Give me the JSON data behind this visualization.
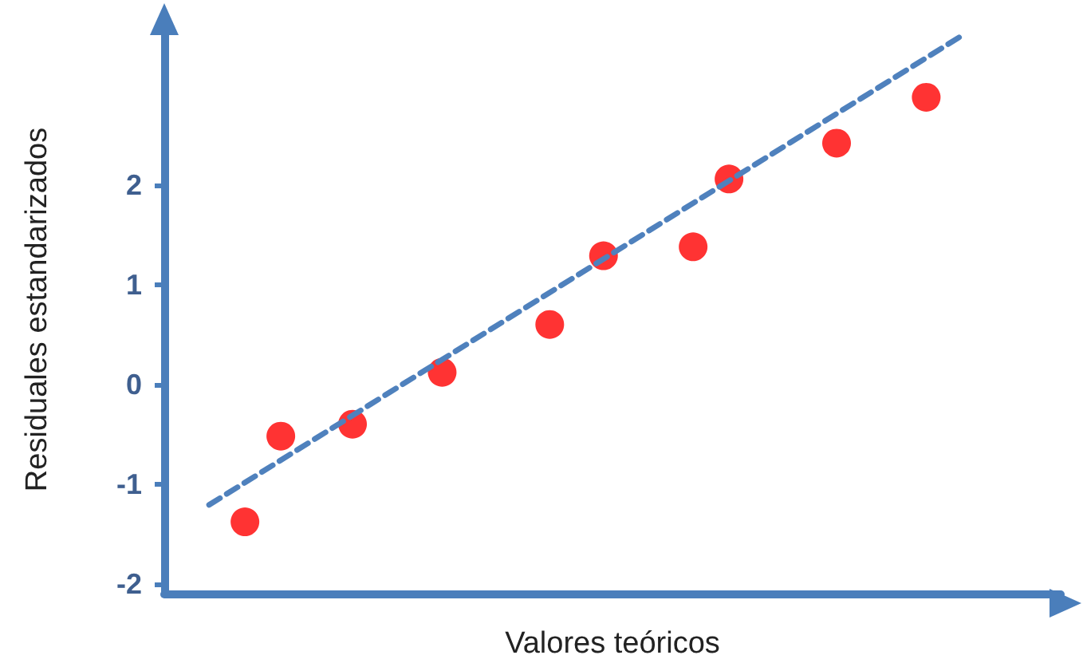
{
  "chart_data": {
    "type": "scatter",
    "xlabel": "Valores teóricos",
    "ylabel": "Residuales estandarizados",
    "categories": [
      null,
      null,
      null,
      null,
      null,
      null,
      null,
      null,
      null,
      null,
      null,
      null,
      null,
      null,
      null,
      null,
      null,
      null,
      null,
      null,
      null,
      null,
      null,
      null,
      null,
      null,
      null,
      null,
      null,
      null,
      null,
      null,
      null,
      null,
      null,
      null,
      null,
      null,
      null,
      null,
      null,
      null,
      null,
      null,
      null,
      null,
      null,
      null,
      null,
      null
    ],
    "ylim": [
      -2.1,
      3.6
    ],
    "yticks": [
      -2,
      -1,
      0,
      1,
      2
    ],
    "tick_labels": "y",
    "grid": false,
    "marker": "circle",
    "series": [
      {
        "color": "#ff0000",
        "values": [
          null,
          null,
          null,
          null,
          -1.38,
          null,
          -0.52,
          null,
          null,
          null,
          -0.4,
          null,
          null,
          null,
          null,
          0.12,
          null,
          null,
          null,
          null,
          null,
          0.6,
          null,
          null,
          1.29,
          null,
          null,
          null,
          null,
          1.38,
          null,
          2.06,
          null,
          null,
          null,
          null,
          null,
          2.42,
          null,
          null,
          null,
          null,
          2.88,
          null,
          null,
          null,
          null,
          null,
          null,
          null
        ]
      },
      {
        "type": "line",
        "color": "#4f81bd",
        "line_style": "dashed",
        "marker": "none",
        "values": [
          null,
          null,
          -1.21,
          null,
          null,
          null,
          null,
          null,
          null,
          null,
          null,
          null,
          null,
          null,
          null,
          null,
          null,
          null,
          null,
          null,
          null,
          null,
          null,
          null,
          null,
          null,
          null,
          null,
          null,
          null,
          null,
          null,
          null,
          null,
          null,
          null,
          null,
          null,
          null,
          null,
          null,
          null,
          null,
          null,
          3.5,
          null,
          null,
          null,
          null,
          null
        ]
      }
    ]
  }
}
